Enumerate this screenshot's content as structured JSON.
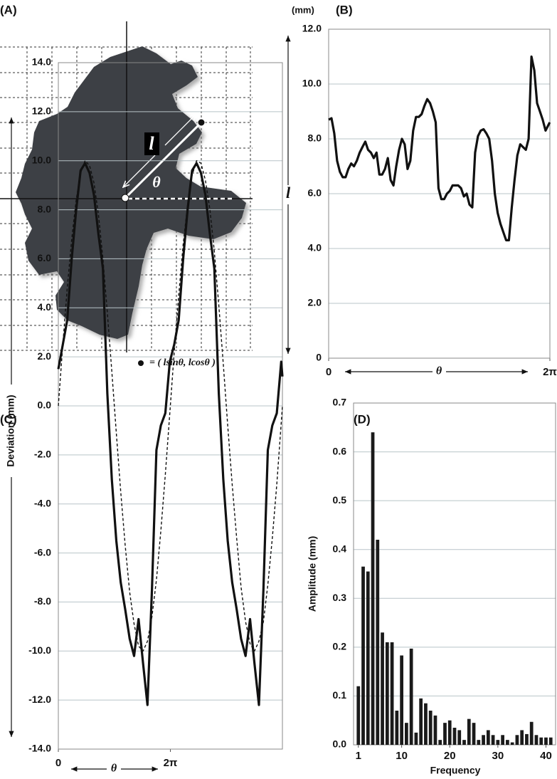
{
  "diagram": {
    "label": "(A)",
    "length_label": "l",
    "angle_label": "θ",
    "point_legend": "= ( lsinθ, lcosθ )"
  },
  "chart_data": [
    {
      "type": "line",
      "panel_label": "(B)",
      "unit_label": "(mm)",
      "y_label": "l",
      "x_label": "θ",
      "xlim": [
        0,
        6.2832
      ],
      "xticks": [
        0,
        {
          "value": 6.2832,
          "label": "2π"
        }
      ],
      "ylim": [
        0,
        12
      ],
      "yticks": [
        0,
        {
          "value": 2,
          "label": "2.0"
        },
        {
          "value": 4,
          "label": "4.0"
        },
        {
          "value": 6,
          "label": "6.0"
        },
        {
          "value": 8,
          "label": "8.0"
        },
        {
          "value": 10,
          "label": "10.0"
        },
        {
          "value": 12,
          "label": "12.0"
        }
      ],
      "grid": true,
      "x": [
        0,
        0.08,
        0.16,
        0.24,
        0.32,
        0.4,
        0.48,
        0.56,
        0.64,
        0.72,
        0.8,
        0.88,
        0.96,
        1.04,
        1.12,
        1.2,
        1.28,
        1.36,
        1.44,
        1.52,
        1.6,
        1.68,
        1.76,
        1.84,
        1.92,
        2,
        2.08,
        2.16,
        2.24,
        2.32,
        2.4,
        2.48,
        2.56,
        2.64,
        2.72,
        2.8,
        2.88,
        2.96,
        3.04,
        3.12,
        3.2,
        3.28,
        3.36,
        3.44,
        3.52,
        3.6,
        3.68,
        3.76,
        3.84,
        3.92,
        4,
        4.08,
        4.16,
        4.24,
        4.32,
        4.4,
        4.48,
        4.56,
        4.64,
        4.72,
        4.8,
        4.88,
        4.96,
        5.04,
        5.12,
        5.2,
        5.28,
        5.36,
        5.44,
        5.52,
        5.6,
        5.68,
        5.76,
        5.84,
        5.92,
        6,
        6.08,
        6.16,
        6.28
      ],
      "series": [
        {
          "color": "#111111",
          "values": [
            8.7,
            8.75,
            8.2,
            7.2,
            6.8,
            6.6,
            6.6,
            6.9,
            7.1,
            7.0,
            7.2,
            7.5,
            7.7,
            7.9,
            7.6,
            7.5,
            7.3,
            7.5,
            6.7,
            6.7,
            6.9,
            7.3,
            6.5,
            6.3,
            7.0,
            7.6,
            8.0,
            7.8,
            6.9,
            7.2,
            8.3,
            8.8,
            8.8,
            8.9,
            9.2,
            9.45,
            9.3,
            9.0,
            8.6,
            6.2,
            5.8,
            5.8,
            6.0,
            6.1,
            6.3,
            6.3,
            6.3,
            6.2,
            5.9,
            6.0,
            5.6,
            5.5,
            7.5,
            8.1,
            8.3,
            8.35,
            8.2,
            8.0,
            7.2,
            6.0,
            5.3,
            4.9,
            4.6,
            4.3,
            4.3,
            5.5,
            6.5,
            7.4,
            7.8,
            7.7,
            7.6,
            8.0,
            11.0,
            10.5,
            9.3,
            9.0,
            8.7,
            8.3,
            8.6
          ]
        }
      ]
    },
    {
      "type": "line",
      "panel_label": "(C)",
      "y_label": "Deviation (mm)",
      "x_label": "θ",
      "xlim": [
        0,
        12.566
      ],
      "xticks": [
        0,
        {
          "value": 6.283,
          "label": "2π"
        }
      ],
      "ylim": [
        -14,
        14
      ],
      "yticks": [
        {
          "value": 14,
          "label": "14.0"
        },
        {
          "value": 12,
          "label": "12.0"
        },
        {
          "value": 10,
          "label": "10.0"
        },
        {
          "value": 8,
          "label": "8.0"
        },
        {
          "value": 6,
          "label": "6.0"
        },
        {
          "value": 4,
          "label": "4.0"
        },
        {
          "value": 2,
          "label": "2.0"
        },
        {
          "value": 0,
          "label": "0.0"
        },
        {
          "value": -2,
          "label": "-2.0"
        },
        {
          "value": -4,
          "label": "-4.0"
        },
        {
          "value": -6,
          "label": "-6.0"
        },
        {
          "value": -8,
          "label": "-8.0"
        },
        {
          "value": -10,
          "label": "-10.0"
        },
        {
          "value": -12,
          "label": "-12.0"
        },
        {
          "value": -14,
          "label": "-14.0"
        }
      ],
      "grid": true,
      "x": [
        0,
        0.25,
        0.5,
        0.75,
        1,
        1.25,
        1.5,
        1.75,
        2,
        2.25,
        2.5,
        2.75,
        3,
        3.25,
        3.5,
        3.75,
        4,
        4.25,
        4.5,
        4.75,
        5,
        5.25,
        5.5,
        5.75,
        6,
        6.25,
        6.5,
        6.75,
        7,
        7.25,
        7.5,
        7.75,
        8,
        8.25,
        8.5,
        8.75,
        9,
        9.25,
        9.5,
        9.75,
        10,
        10.25,
        10.5,
        10.75,
        11,
        11.25,
        11.5,
        11.75,
        12,
        12.25,
        12.5,
        12.566
      ],
      "series": [
        {
          "color": "#111111",
          "values": [
            1.5,
            2.5,
            3.5,
            6.0,
            8.0,
            9.6,
            9.9,
            9.5,
            8.6,
            7.0,
            5.6,
            0.5,
            -3.0,
            -5.5,
            -7.2,
            -8.3,
            -9.5,
            -10.2,
            -8.7,
            -10.5,
            -12.2,
            -7.5,
            -1.8,
            -0.8,
            -0.3,
            1.8,
            2.5,
            3.5,
            6.0,
            8.0,
            9.6,
            9.9,
            9.5,
            8.6,
            7.0,
            5.6,
            0.5,
            -3.0,
            -5.5,
            -7.2,
            -8.3,
            -9.5,
            -10.2,
            -8.7,
            -10.5,
            -12.2,
            -7.5,
            -1.8,
            -0.8,
            -0.3,
            1.8,
            1.2
          ]
        },
        {
          "color": "#111111",
          "dashed": true,
          "values": [
            0,
            2.5,
            4.8,
            6.8,
            8.4,
            9.5,
            10.0,
            9.8,
            9.1,
            7.8,
            6.0,
            3.8,
            1.4,
            -1.1,
            -3.5,
            -5.7,
            -7.6,
            -8.9,
            -9.8,
            -10.0,
            -9.6,
            -8.6,
            -7.1,
            -5.1,
            -2.8,
            -0.3,
            2.2,
            4.5,
            6.6,
            8.2,
            9.4,
            10.0,
            9.9,
            9.2,
            8.0,
            6.3,
            4.1,
            1.7,
            -0.8,
            -3.2,
            -5.4,
            -7.4,
            -8.8,
            -9.7,
            -10.0,
            -9.6,
            -8.8,
            -7.3,
            -5.4,
            -3.2,
            -0.7,
            0
          ]
        }
      ]
    },
    {
      "type": "bar",
      "panel_label": "(D)",
      "y_label": "Amplitude (mm)",
      "x_label": "Frequency",
      "xlim": [
        0,
        42
      ],
      "xticks": [
        1,
        10,
        20,
        30,
        40
      ],
      "ylim": [
        0,
        0.7
      ],
      "yticks": [
        {
          "value": 0,
          "label": "0.0"
        },
        0.1,
        0.2,
        0.3,
        0.4,
        0.5,
        0.6,
        0.7
      ],
      "grid": true,
      "color": "#1a1a1a",
      "x": [
        1,
        2,
        3,
        4,
        5,
        6,
        7,
        8,
        9,
        10,
        11,
        12,
        13,
        14,
        15,
        16,
        17,
        18,
        19,
        20,
        21,
        22,
        23,
        24,
        25,
        26,
        27,
        28,
        29,
        30,
        31,
        32,
        33,
        34,
        35,
        36,
        37,
        38,
        39,
        40,
        41
      ],
      "values": [
        0.12,
        0.365,
        0.355,
        0.64,
        0.42,
        0.23,
        0.21,
        0.21,
        0.07,
        0.183,
        0.045,
        0.197,
        0.025,
        0.095,
        0.085,
        0.07,
        0.06,
        0.01,
        0.045,
        0.05,
        0.035,
        0.03,
        0.01,
        0.053,
        0.045,
        0.01,
        0.02,
        0.03,
        0.02,
        0.01,
        0.02,
        0.01,
        0.005,
        0.02,
        0.03,
        0.022,
        0.047,
        0.02,
        0.015,
        0.015,
        0.015
      ]
    }
  ]
}
